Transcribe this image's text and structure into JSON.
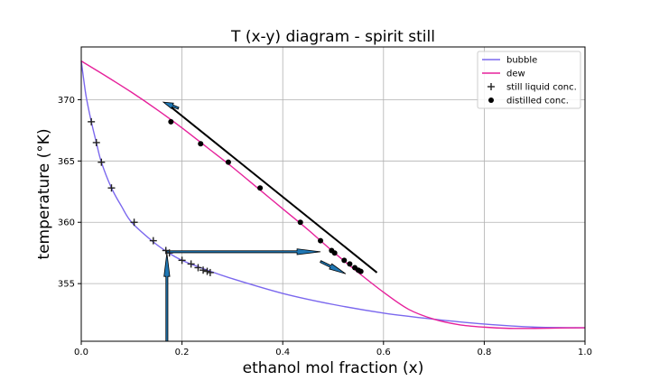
{
  "chart_data": {
    "type": "line",
    "title": "T (x-y) diagram - spirit still",
    "xlabel": "ethanol mol fraction (x)",
    "ylabel": "temperature (°K)",
    "xlim": [
      0,
      1
    ],
    "ylim": [
      350.3,
      374.3
    ],
    "x_ticks": [
      0,
      0.2,
      0.4,
      0.6,
      0.8,
      1.0
    ],
    "x_tick_labels": [
      "0.0",
      "0.2",
      "0.4",
      "0.6",
      "0.8",
      "1.0"
    ],
    "y_ticks": [
      355,
      360,
      365,
      370
    ],
    "y_tick_labels": [
      "355",
      "360",
      "365",
      "370"
    ],
    "grid": true,
    "legend_position": "top-right",
    "series": [
      {
        "name": "bubble",
        "kind": "line",
        "color": "#7b68ee",
        "points": [
          [
            0,
            373.15
          ],
          [
            0.005,
            371.6
          ],
          [
            0.01,
            370.2
          ],
          [
            0.02,
            368.2
          ],
          [
            0.03,
            366.5
          ],
          [
            0.04,
            364.9
          ],
          [
            0.06,
            362.8
          ],
          [
            0.08,
            361.3
          ],
          [
            0.1,
            360.0
          ],
          [
            0.14,
            358.5
          ],
          [
            0.17,
            357.6
          ],
          [
            0.2,
            356.9
          ],
          [
            0.25,
            356.1
          ],
          [
            0.3,
            355.4
          ],
          [
            0.4,
            354.2
          ],
          [
            0.5,
            353.3
          ],
          [
            0.6,
            352.6
          ],
          [
            0.7,
            352.1
          ],
          [
            0.8,
            351.7
          ],
          [
            0.9,
            351.45
          ],
          [
            1.0,
            351.4
          ]
        ]
      },
      {
        "name": "dew",
        "kind": "line",
        "color": "#e6219b",
        "points": [
          [
            0,
            373.15
          ],
          [
            0.05,
            371.9
          ],
          [
            0.1,
            370.6
          ],
          [
            0.15,
            369.2
          ],
          [
            0.2,
            367.7
          ],
          [
            0.25,
            366.1
          ],
          [
            0.3,
            364.5
          ],
          [
            0.35,
            362.8
          ],
          [
            0.4,
            361.1
          ],
          [
            0.45,
            359.4
          ],
          [
            0.5,
            357.6
          ],
          [
            0.55,
            355.9
          ],
          [
            0.6,
            354.3
          ],
          [
            0.65,
            352.9
          ],
          [
            0.7,
            352.1
          ],
          [
            0.75,
            351.65
          ],
          [
            0.8,
            351.45
          ],
          [
            0.85,
            351.35
          ],
          [
            0.9,
            351.35
          ],
          [
            0.95,
            351.38
          ],
          [
            1.0,
            351.4
          ]
        ]
      },
      {
        "name": "still liquid conc.",
        "kind": "scatter",
        "marker": "plus",
        "color": "#000000",
        "points": [
          [
            0.02,
            368.2
          ],
          [
            0.03,
            366.5
          ],
          [
            0.04,
            364.9
          ],
          [
            0.06,
            362.8
          ],
          [
            0.105,
            360.0
          ],
          [
            0.143,
            358.5
          ],
          [
            0.168,
            357.7
          ],
          [
            0.175,
            357.5
          ],
          [
            0.2,
            356.9
          ],
          [
            0.218,
            356.6
          ],
          [
            0.232,
            356.3
          ],
          [
            0.242,
            356.1
          ],
          [
            0.25,
            356.0
          ],
          [
            0.256,
            355.9
          ]
        ]
      },
      {
        "name": "distilled conc.",
        "kind": "scatter",
        "marker": "circle",
        "color": "#000000",
        "points": [
          [
            0.178,
            368.2
          ],
          [
            0.237,
            366.4
          ],
          [
            0.292,
            364.9
          ],
          [
            0.355,
            362.8
          ],
          [
            0.435,
            360.0
          ],
          [
            0.475,
            358.5
          ],
          [
            0.497,
            357.7
          ],
          [
            0.503,
            357.5
          ],
          [
            0.522,
            356.9
          ],
          [
            0.533,
            356.6
          ],
          [
            0.543,
            356.3
          ],
          [
            0.55,
            356.1
          ],
          [
            0.555,
            356.0
          ]
        ]
      }
    ],
    "annotations": [
      {
        "kind": "line",
        "from": [
          0.175,
          369.5
        ],
        "to": [
          0.587,
          355.9
        ],
        "color": "#000000",
        "width": 2
      },
      {
        "kind": "arrow",
        "from": [
          0.193,
          369.3
        ],
        "to": [
          0.163,
          369.8
        ],
        "color": "#1f77b4"
      },
      {
        "kind": "arrow",
        "from": [
          0.17,
          357.6
        ],
        "to": [
          0.475,
          357.6
        ],
        "color": "#1f77b4"
      },
      {
        "kind": "arrow",
        "from": [
          0.17,
          350.3
        ],
        "to": [
          0.17,
          357.5
        ],
        "color": "#1f77b4"
      },
      {
        "kind": "arrow",
        "from": [
          0.475,
          356.8
        ],
        "to": [
          0.525,
          355.8
        ],
        "color": "#1f77b4"
      }
    ]
  }
}
